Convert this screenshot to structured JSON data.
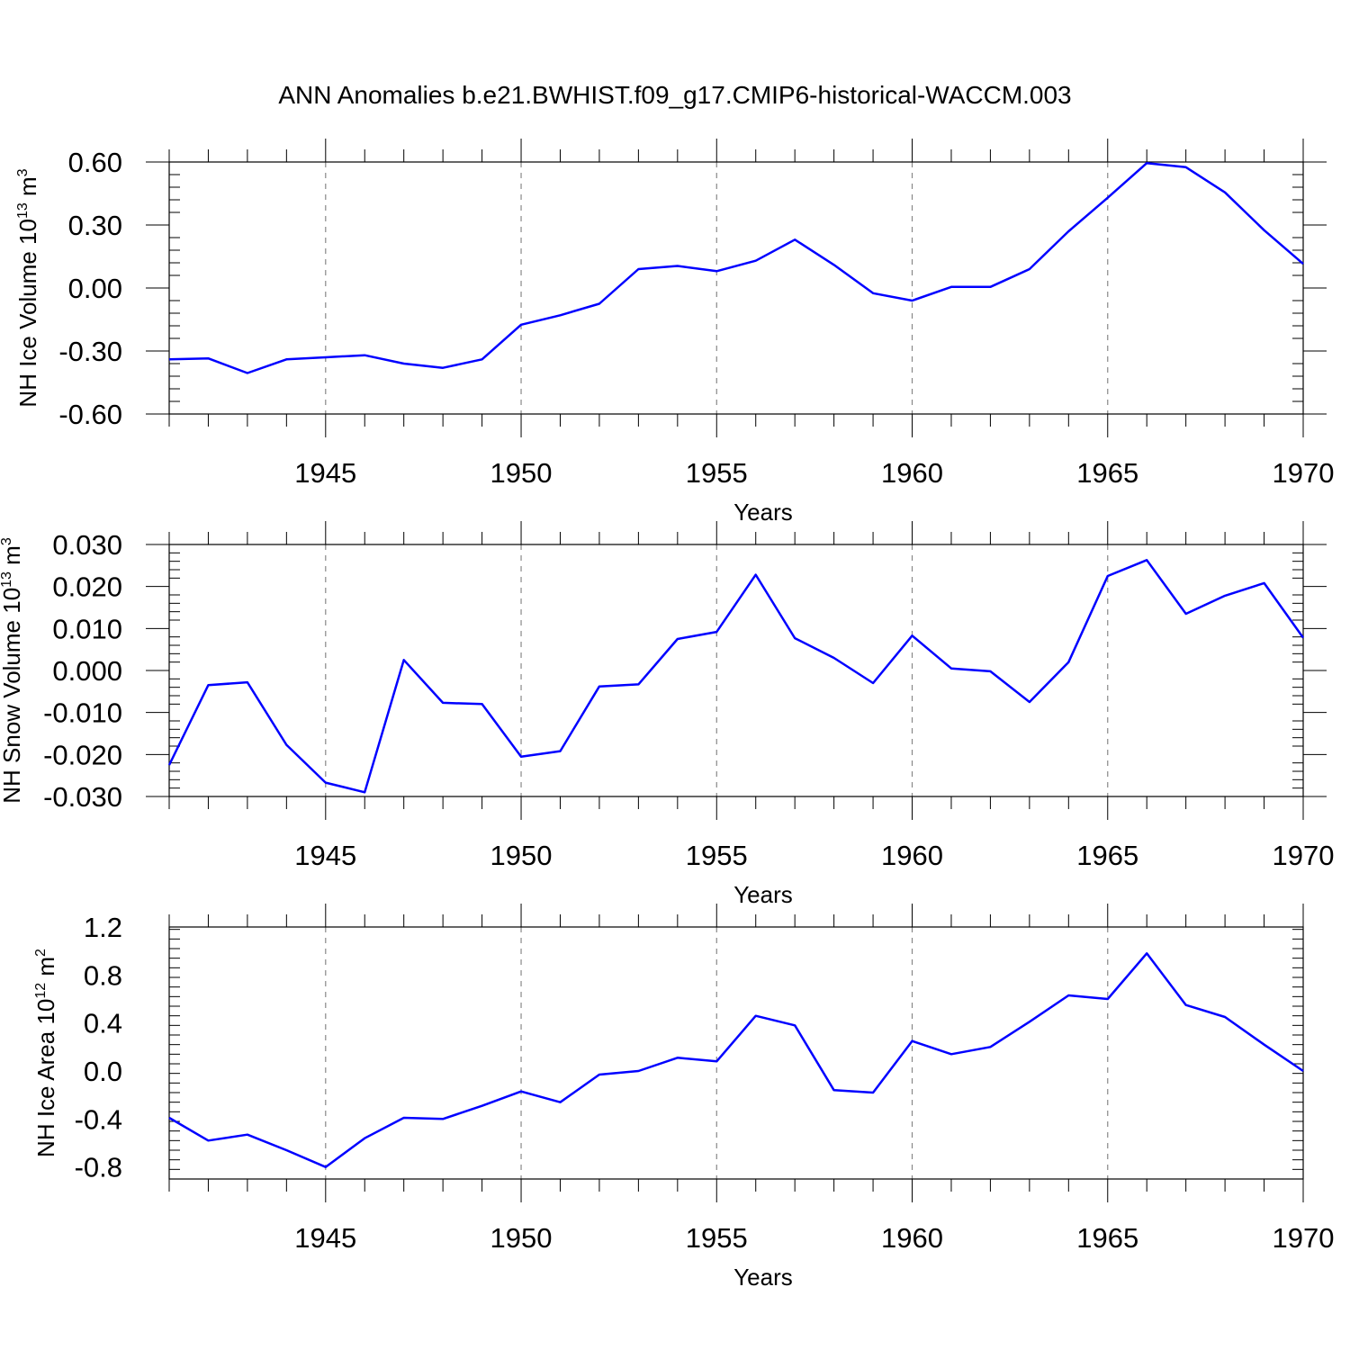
{
  "title": "ANN Anomalies b.e21.BWHIST.f09_g17.CMIP6-historical-WACCM.003",
  "colors": {
    "line": "#0000ff",
    "grid": "#888888",
    "axis": "#000000"
  },
  "chart_data": [
    {
      "type": "line",
      "ylabel_main": "NH Ice Volume 10",
      "ylabel_exp": "13",
      "ylabel_unit": " m",
      "ylabel_unit_exp": "3",
      "xlabel": "Years",
      "xlim": [
        1941,
        1970
      ],
      "ylim": [
        -0.6,
        0.6
      ],
      "yticks": [
        -0.6,
        -0.3,
        0.0,
        0.3,
        0.6
      ],
      "ytick_labels": [
        "-0.60",
        "-0.30",
        "0.00",
        "0.30",
        "0.60"
      ],
      "xticks": [
        1945,
        1950,
        1955,
        1960,
        1965,
        1970
      ],
      "xtick_labels": [
        "1945",
        "1950",
        "1955",
        "1960",
        "1965",
        "1970"
      ],
      "x": [
        1941,
        1942,
        1943,
        1944,
        1945,
        1946,
        1947,
        1948,
        1949,
        1950,
        1951,
        1952,
        1953,
        1954,
        1955,
        1956,
        1957,
        1958,
        1959,
        1960,
        1961,
        1962,
        1963,
        1964,
        1965,
        1966,
        1967,
        1968,
        1969,
        1970
      ],
      "y": [
        -0.34,
        -0.335,
        -0.405,
        -0.34,
        -0.33,
        -0.32,
        -0.36,
        -0.38,
        -0.34,
        -0.175,
        -0.13,
        -0.075,
        0.09,
        0.105,
        0.08,
        0.13,
        0.23,
        0.11,
        -0.025,
        -0.06,
        0.005,
        0.005,
        0.09,
        0.27,
        0.43,
        0.595,
        0.575,
        0.455,
        0.275,
        0.115
      ]
    },
    {
      "type": "line",
      "ylabel_main": "NH Snow Volume 10",
      "ylabel_exp": "13",
      "ylabel_unit": " m",
      "ylabel_unit_exp": "3",
      "xlabel": "Years",
      "xlim": [
        1941,
        1970
      ],
      "ylim": [
        -0.03,
        0.03
      ],
      "yticks": [
        -0.03,
        -0.02,
        -0.01,
        0.0,
        0.01,
        0.02,
        0.03
      ],
      "ytick_labels": [
        "-0.030",
        "-0.020",
        "-0.010",
        "0.000",
        "0.010",
        "0.020",
        "0.030"
      ],
      "xticks": [
        1945,
        1950,
        1955,
        1960,
        1965,
        1970
      ],
      "xtick_labels": [
        "1945",
        "1950",
        "1955",
        "1960",
        "1965",
        "1970"
      ],
      "x": [
        1941,
        1942,
        1943,
        1944,
        1945,
        1946,
        1947,
        1948,
        1949,
        1950,
        1951,
        1952,
        1953,
        1954,
        1955,
        1956,
        1957,
        1958,
        1959,
        1960,
        1961,
        1962,
        1963,
        1964,
        1965,
        1966,
        1967,
        1968,
        1969,
        1970
      ],
      "y": [
        -0.0225,
        -0.0035,
        -0.0028,
        -0.0177,
        -0.0267,
        -0.029,
        0.0025,
        -0.0077,
        -0.008,
        -0.0205,
        -0.0192,
        -0.0038,
        -0.0033,
        0.0075,
        0.0092,
        0.0228,
        0.0077,
        0.003,
        -0.003,
        0.0083,
        0.0005,
        -0.0002,
        -0.0075,
        0.002,
        0.0225,
        0.0263,
        0.0135,
        0.0178,
        0.0208,
        0.0078
      ]
    },
    {
      "type": "line",
      "ylabel_main": "NH Ice Area 10",
      "ylabel_exp": "12",
      "ylabel_unit": " m",
      "ylabel_unit_exp": "2",
      "xlabel": "Years",
      "xlim": [
        1941,
        1970
      ],
      "ylim": [
        -0.9,
        1.2
      ],
      "yticks": [
        -0.8,
        -0.4,
        0.0,
        0.4,
        0.8,
        1.2
      ],
      "ytick_labels": [
        "-0.8",
        "-0.4",
        "0.0",
        "0.4",
        "0.8",
        "1.2"
      ],
      "xticks": [
        1945,
        1950,
        1955,
        1960,
        1965,
        1970
      ],
      "xtick_labels": [
        "1945",
        "1950",
        "1955",
        "1960",
        "1965",
        "1970"
      ],
      "x": [
        1941,
        1942,
        1943,
        1944,
        1945,
        1946,
        1947,
        1948,
        1949,
        1950,
        1951,
        1952,
        1953,
        1954,
        1955,
        1956,
        1957,
        1958,
        1959,
        1960,
        1961,
        1962,
        1963,
        1964,
        1965,
        1966,
        1967,
        1968,
        1969,
        1970
      ],
      "y": [
        -0.39,
        -0.58,
        -0.53,
        -0.66,
        -0.8,
        -0.56,
        -0.39,
        -0.4,
        -0.29,
        -0.17,
        -0.26,
        -0.03,
        0.0,
        0.11,
        0.08,
        0.46,
        0.38,
        -0.16,
        -0.18,
        0.25,
        0.14,
        0.2,
        0.41,
        0.63,
        0.6,
        0.98,
        0.55,
        0.45,
        0.22,
        0.0
      ]
    }
  ]
}
